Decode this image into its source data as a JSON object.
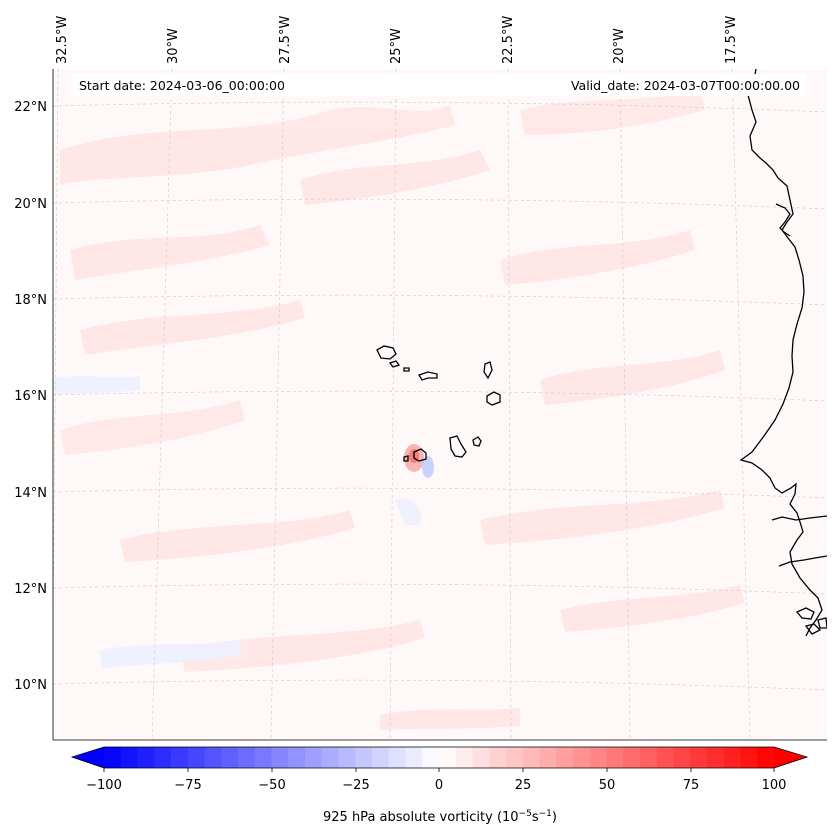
{
  "map": {
    "start_label": "Start date: 2024-03-06_00:00:00",
    "valid_label": "Valid_date: 2024-03-07T00:00:00.00",
    "lon_labels": [
      "32.5°W",
      "30°W",
      "27.5°W",
      "25°W",
      "22.5°W",
      "20°W",
      "17.5°W"
    ],
    "lat_labels": [
      "22°N",
      "20°N",
      "18°N",
      "16°N",
      "14°N",
      "12°N",
      "10°N"
    ],
    "field": "925 hPa absolute vorticity",
    "features": [
      "cabo-verde-islands",
      "west-african-coastline",
      "dashed-graticule"
    ]
  },
  "colorbar": {
    "label_text": "925 hPa absolute vorticity (10",
    "label_exp1": "−5",
    "label_mid": "s",
    "label_exp2": "−1",
    "label_close": ")",
    "ticks": [
      "−100",
      "−75",
      "−50",
      "−25",
      "0",
      "25",
      "50",
      "75",
      "100"
    ],
    "vmin": -100,
    "vmax": 100,
    "extend": "both",
    "cmap": "bwr",
    "low_color": "#0000ff",
    "mid_color": "#ffffff",
    "high_color": "#ff0000"
  }
}
